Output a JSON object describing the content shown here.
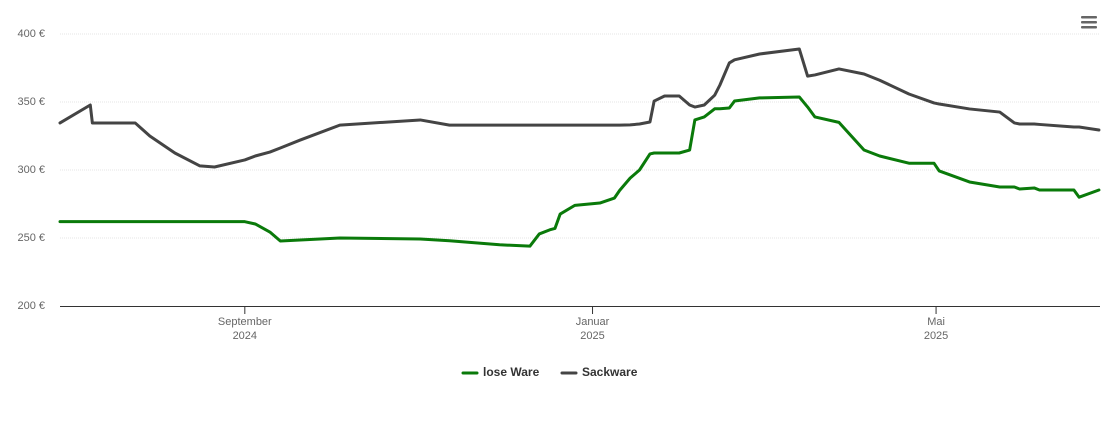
{
  "chart_data": {
    "type": "line",
    "x": [
      2024.49,
      2024.519,
      2024.521,
      2024.562,
      2024.576,
      2024.6,
      2024.624,
      2024.638,
      2024.667,
      2024.677,
      2024.691,
      2024.701,
      2024.72,
      2024.758,
      2024.835,
      2024.863,
      2024.911,
      2024.94,
      2024.949,
      2024.959,
      2024.964,
      2024.969,
      2024.983,
      2025.007,
      2025.021,
      2025.026,
      2025.036,
      2025.045,
      2025.055,
      2025.059,
      2025.069,
      2025.083,
      2025.093,
      2025.098,
      2025.107,
      2025.117,
      2025.122,
      2025.131,
      2025.136,
      2025.16,
      2025.198,
      2025.206,
      2025.213,
      2025.236,
      2025.26,
      2025.275,
      2025.303,
      2025.327,
      2025.332,
      2025.361,
      2025.39,
      2025.404,
      2025.409,
      2025.423,
      2025.428,
      2025.461,
      2025.466,
      2025.485
    ],
    "series": [
      {
        "name": "lose Ware",
        "color": "#0a7a0a",
        "values": [
          262,
          262,
          262,
          262,
          262,
          262,
          262,
          262,
          262,
          260.3,
          254.4,
          247.8,
          248.5,
          250,
          249.3,
          248,
          245,
          244,
          253,
          256,
          257,
          267.6,
          274,
          275.7,
          279.4,
          285,
          294,
          300,
          311.8,
          312.5,
          312.5,
          312.5,
          314.7,
          336.8,
          339,
          345,
          345,
          345.6,
          350.7,
          353,
          353.7,
          346.3,
          339,
          335,
          314.7,
          310.3,
          305,
          305,
          299.3,
          291.2,
          287.5,
          287.5,
          286,
          286.8,
          285.3,
          285.3,
          280,
          285.3
        ]
      },
      {
        "name": "Sackware",
        "color": "#444444",
        "values": [
          334.6,
          347.8,
          334.6,
          334.6,
          325,
          312.5,
          303,
          302.2,
          307.4,
          310.3,
          313.2,
          316.2,
          322,
          333,
          336.8,
          333,
          333,
          333,
          333,
          333,
          333,
          333,
          333,
          333,
          333,
          333,
          333.2,
          333.8,
          335.3,
          350.7,
          354.4,
          354.4,
          347.8,
          346.3,
          347.8,
          355,
          362.5,
          378.7,
          381,
          385.3,
          389,
          369,
          369.9,
          374.3,
          370.6,
          366,
          355.9,
          349.3,
          348.5,
          344.9,
          342.6,
          334.6,
          333.8,
          333.8,
          333.5,
          331.6,
          331.6,
          329.4
        ]
      }
    ],
    "xlim": [
      2024.49,
      2025.486
    ],
    "xticks": [
      {
        "value": 2024.667,
        "label": "September 2024"
      },
      {
        "value": 2025.0,
        "label": "Januar 2025"
      },
      {
        "value": 2025.329,
        "label": "Mai 2025"
      }
    ],
    "ylim": [
      200,
      400
    ],
    "yticks": [
      {
        "value": 200,
        "label": "200 €"
      },
      {
        "value": 250,
        "label": "250 €"
      },
      {
        "value": 300,
        "label": "300 €"
      },
      {
        "value": 350,
        "label": "350 €"
      },
      {
        "value": 400,
        "label": "400 €"
      }
    ],
    "grid": true,
    "legend": "bottom"
  }
}
